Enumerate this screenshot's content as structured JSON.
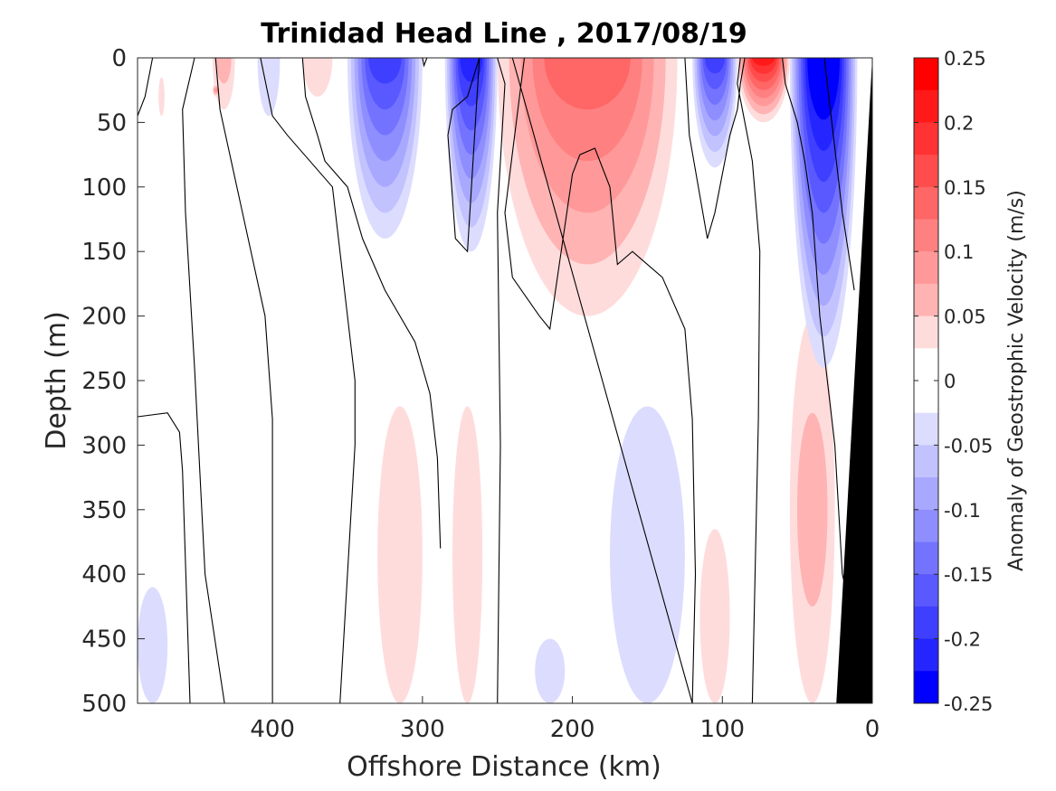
{
  "chart_data": {
    "type": "heatmap",
    "title": "Trinidad Head Line , 2017/08/19",
    "xlabel": "Offshore Distance (km)",
    "ylabel": "Depth (m)",
    "colorbar_label": "Anomaly of Geostrophic Velocity (m/s)",
    "xlim": [
      490,
      0
    ],
    "ylim": [
      500,
      0
    ],
    "x_reversed": true,
    "y_reversed": true,
    "x_ticks": [
      "400",
      "300",
      "200",
      "100",
      "0"
    ],
    "x_tick_values": [
      400,
      300,
      200,
      100,
      0
    ],
    "y_ticks": [
      "0",
      "50",
      "100",
      "150",
      "200",
      "250",
      "300",
      "350",
      "400",
      "450",
      "500"
    ],
    "y_tick_values": [
      0,
      50,
      100,
      150,
      200,
      250,
      300,
      350,
      400,
      450,
      500
    ],
    "colorbar": {
      "ticks": [
        "0.25",
        "0.2",
        "0.15",
        "0.1",
        "0.05",
        "0",
        "-0.05",
        "-0.1",
        "-0.15",
        "-0.2",
        "-0.25"
      ],
      "tick_values": [
        0.25,
        0.2,
        0.15,
        0.1,
        0.05,
        0,
        -0.05,
        -0.1,
        -0.15,
        -0.2,
        -0.25
      ],
      "levels_from_top": [
        {
          "lo": 0.225,
          "hi": 0.25,
          "color": "#ff0000"
        },
        {
          "lo": 0.2,
          "hi": 0.225,
          "color": "#ff1919"
        },
        {
          "lo": 0.175,
          "hi": 0.2,
          "color": "#ff3333"
        },
        {
          "lo": 0.15,
          "hi": 0.175,
          "color": "#ff4d4d"
        },
        {
          "lo": 0.125,
          "hi": 0.15,
          "color": "#ff6666"
        },
        {
          "lo": 0.1,
          "hi": 0.125,
          "color": "#ff8080"
        },
        {
          "lo": 0.075,
          "hi": 0.1,
          "color": "#ff9999"
        },
        {
          "lo": 0.05,
          "hi": 0.075,
          "color": "#ffb3b3"
        },
        {
          "lo": 0.025,
          "hi": 0.05,
          "color": "#ffdcdc"
        },
        {
          "lo": 0.0,
          "hi": 0.025,
          "color": "#ffffff"
        },
        {
          "lo": -0.025,
          "hi": 0.0,
          "color": "#ffffff"
        },
        {
          "lo": -0.05,
          "hi": -0.025,
          "color": "#dcdcff"
        },
        {
          "lo": -0.075,
          "hi": -0.05,
          "color": "#c2c2ff"
        },
        {
          "lo": -0.1,
          "hi": -0.075,
          "color": "#a8a8ff"
        },
        {
          "lo": -0.125,
          "hi": -0.1,
          "color": "#8e8eff"
        },
        {
          "lo": -0.15,
          "hi": -0.125,
          "color": "#7373ff"
        },
        {
          "lo": -0.175,
          "hi": -0.15,
          "color": "#5959ff"
        },
        {
          "lo": -0.2,
          "hi": -0.175,
          "color": "#3f3fff"
        },
        {
          "lo": -0.225,
          "hi": -0.2,
          "color": "#2525ff"
        },
        {
          "lo": -0.25,
          "hi": -0.225,
          "color": "#0000ff"
        }
      ]
    },
    "positive_regions": [
      {
        "depth": [
          0,
          40
        ],
        "distance": [
          440,
          425
        ],
        "peak": 0.06
      },
      {
        "depth": [
          20,
          30
        ],
        "distance": [
          440,
          435
        ],
        "peak": 0.08
      },
      {
        "depth": [
          15,
          45
        ],
        "distance": [
          476,
          472
        ],
        "peak": 0.04
      },
      {
        "depth": [
          0,
          30
        ],
        "distance": [
          380,
          360
        ],
        "peak": 0.04
      },
      {
        "depth": [
          0,
          200
        ],
        "distance": [
          250,
          130
        ],
        "peak": 0.13
      },
      {
        "depth": [
          0,
          50
        ],
        "distance": [
          90,
          55
        ],
        "peak": 0.2
      },
      {
        "depth": [
          270,
          500
        ],
        "distance": [
          330,
          300
        ],
        "peak": 0.03
      },
      {
        "depth": [
          270,
          500
        ],
        "distance": [
          280,
          260
        ],
        "peak": 0.03
      },
      {
        "depth": [
          365,
          500
        ],
        "distance": [
          115,
          95
        ],
        "peak": 0.04
      },
      {
        "depth": [
          200,
          500
        ],
        "distance": [
          55,
          25
        ],
        "peak": 0.06
      }
    ],
    "negative_regions": [
      {
        "depth": [
          0,
          140
        ],
        "distance": [
          350,
          300
        ],
        "peak": -0.18
      },
      {
        "depth": [
          0,
          150
        ],
        "distance": [
          285,
          250
        ],
        "peak": -0.2
      },
      {
        "depth": [
          0,
          85
        ],
        "distance": [
          120,
          90
        ],
        "peak": -0.18
      },
      {
        "depth": [
          0,
          240
        ],
        "distance": [
          55,
          10
        ],
        "peak": -0.25
      },
      {
        "depth": [
          0,
          45
        ],
        "distance": [
          410,
          395
        ],
        "peak": -0.04
      },
      {
        "depth": [
          410,
          500
        ],
        "distance": [
          490,
          470
        ],
        "peak": -0.03
      },
      {
        "depth": [
          270,
          500
        ],
        "distance": [
          175,
          125
        ],
        "peak": -0.04
      },
      {
        "depth": [
          450,
          500
        ],
        "distance": [
          225,
          205
        ],
        "peak": -0.03
      }
    ],
    "zero_contours": [
      {
        "distance": [
          480,
          485,
          490
        ],
        "depth": [
          0,
          30,
          45
        ]
      },
      {
        "distance": [
          490,
          470,
          462,
          460,
          455
        ],
        "depth": [
          278,
          275,
          290,
          320,
          500
        ]
      },
      {
        "distance": [
          452,
          460,
          458,
          452,
          445,
          432
        ],
        "depth": [
          0,
          40,
          120,
          240,
          400,
          500
        ]
      },
      {
        "distance": [
          438,
          435,
          420,
          405,
          400,
          400
        ],
        "depth": [
          0,
          40,
          120,
          200,
          280,
          500
        ]
      },
      {
        "distance": [
          408,
          400,
          390,
          360,
          345,
          345,
          355
        ],
        "depth": [
          0,
          45,
          60,
          100,
          250,
          300,
          500
        ]
      },
      {
        "distance": [
          380,
          378,
          370,
          365,
          350,
          340,
          325,
          305,
          295,
          290,
          288
        ],
        "depth": [
          0,
          30,
          60,
          80,
          100,
          140,
          180,
          220,
          260,
          310,
          380
        ]
      },
      {
        "distance": [
          300,
          299,
          297
        ],
        "depth": [
          0,
          6,
          0
        ]
      },
      {
        "distance": [
          262,
          270,
          280,
          283,
          278,
          270,
          262
        ],
        "depth": [
          0,
          30,
          40,
          60,
          140,
          150,
          0
        ]
      },
      {
        "distance": [
          250,
          245,
          250,
          248,
          250
        ],
        "depth": [
          0,
          20,
          120,
          300,
          500
        ]
      },
      {
        "distance": [
          232,
          245,
          240,
          222,
          215,
          210,
          200,
          195,
          185,
          175,
          170,
          160,
          155,
          140,
          125,
          120,
          118,
          120,
          240
        ],
        "depth": [
          0,
          120,
          170,
          200,
          210,
          170,
          90,
          75,
          70,
          100,
          160,
          150,
          155,
          170,
          210,
          280,
          400,
          500,
          0
        ]
      },
      {
        "distance": [
          125,
          122,
          110,
          105,
          100,
          95,
          90,
          88,
          85,
          82
        ],
        "depth": [
          0,
          60,
          140,
          120,
          90,
          60,
          40,
          20,
          0,
          0
        ]
      },
      {
        "distance": [
          88,
          90,
          80,
          75,
          76,
          80
        ],
        "depth": [
          0,
          20,
          80,
          150,
          280,
          500
        ]
      },
      {
        "distance": [
          60,
          58,
          50,
          45,
          40,
          35,
          25,
          20,
          0
        ],
        "depth": [
          0,
          20,
          50,
          80,
          120,
          200,
          300,
          400,
          500
        ]
      },
      {
        "distance": [
          32,
          28,
          20,
          12
        ],
        "depth": [
          0,
          40,
          120,
          180
        ]
      }
    ],
    "bathymetry": {
      "distance": [
        0,
        0,
        24
      ],
      "depth": [
        0,
        500,
        500
      ],
      "color": "#000000"
    },
    "grid": false,
    "legend": "colorbar-right"
  }
}
